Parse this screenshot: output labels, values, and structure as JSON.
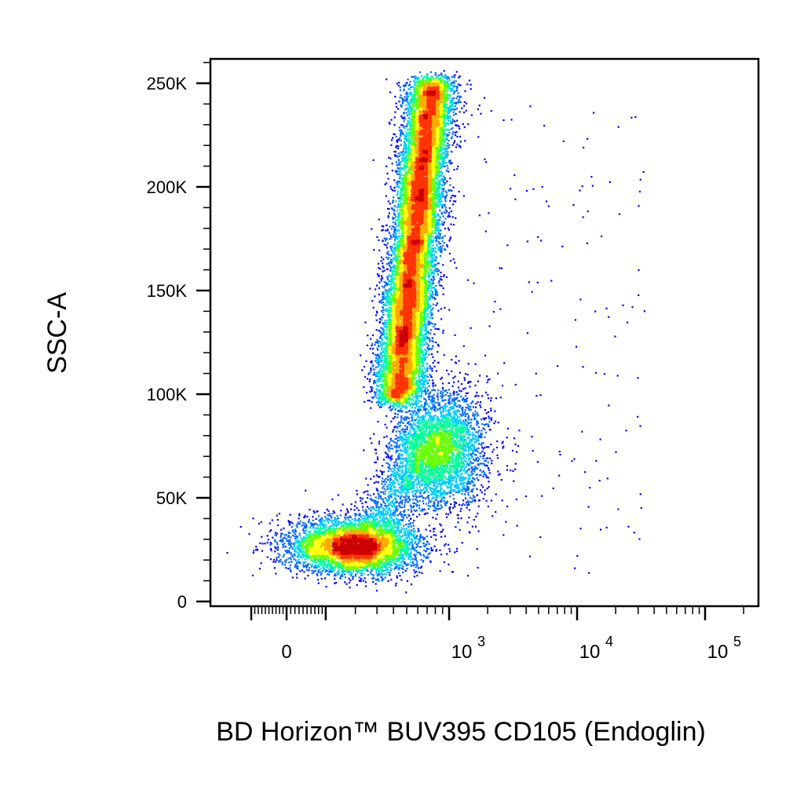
{
  "chart_data": {
    "type": "scatter",
    "style": "density-dot-plot",
    "xlabel": "BD Horizon™ BUV395 CD105 (Endoglin)",
    "ylabel": "SSC-A",
    "x_scale": "biexponential",
    "y_scale": "linear",
    "ylim": [
      0,
      262144
    ],
    "y_ticks": [
      {
        "value": 0,
        "label": "0"
      },
      {
        "value": 50000,
        "label": "50K"
      },
      {
        "value": 100000,
        "label": "100K"
      },
      {
        "value": 150000,
        "label": "150K"
      },
      {
        "value": 200000,
        "label": "200K"
      },
      {
        "value": 250000,
        "label": "250K"
      }
    ],
    "x_ticks": [
      {
        "value": 0,
        "base": "0",
        "exp": ""
      },
      {
        "value": 1000,
        "base": "10",
        "exp": "3"
      },
      {
        "value": 10000,
        "base": "10",
        "exp": "4"
      },
      {
        "value": 100000,
        "base": "10",
        "exp": "5"
      }
    ],
    "populations": [
      {
        "x_center": 150,
        "y_center": 28000,
        "x_spread": 110,
        "y_spread": 7000,
        "count": 5500,
        "density": "medium"
      },
      {
        "x_center": 480,
        "y_center": 75000,
        "x_spread": 180,
        "y_spread": 12000,
        "count": 3600,
        "density": "low"
      },
      {
        "x_center": 560,
        "y_center": 170000,
        "x_spread": 90,
        "y_spread": 45000,
        "count": 16000,
        "density": "high"
      }
    ],
    "density_colors": [
      "#0000ff",
      "#0066ff",
      "#00ccff",
      "#00ff99",
      "#66ff00",
      "#ffff00",
      "#ffaa00",
      "#ff3300",
      "#cc0000"
    ],
    "grid": false,
    "legend": "none"
  }
}
